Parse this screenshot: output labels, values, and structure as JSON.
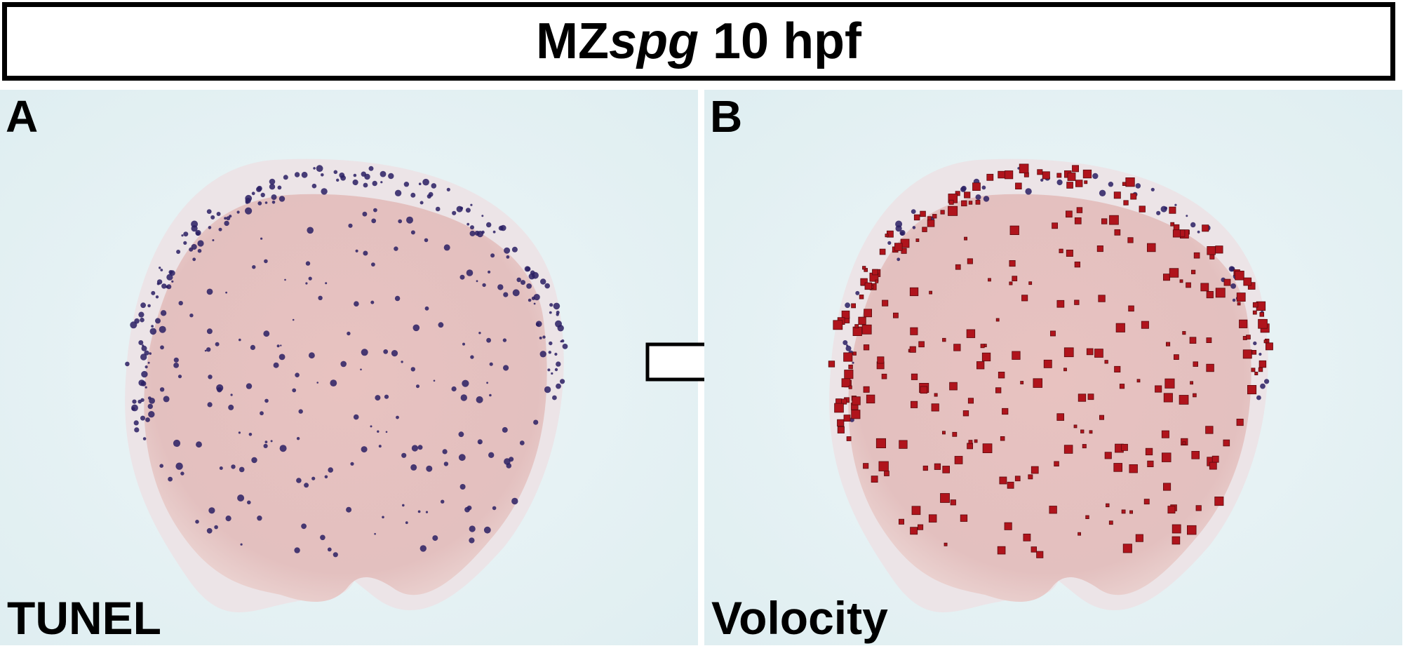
{
  "title": {
    "prefix": "MZ",
    "italic": "spg",
    "suffix": " 10 hpf"
  },
  "panels": [
    {
      "letter": "A",
      "label": "TUNEL"
    },
    {
      "letter": "B",
      "label": "Volocity"
    }
  ],
  "colors": {
    "background": "#e4f1f3",
    "embryo_pink": "#e6c3c3",
    "tunel_stain": "#2a1f63",
    "volocity_box": "#b0141c"
  }
}
